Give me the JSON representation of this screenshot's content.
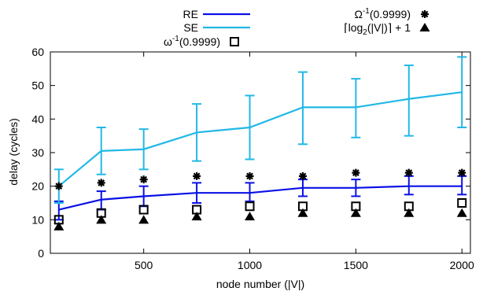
{
  "chart_data": {
    "type": "line",
    "xlabel": "node number (|V|)",
    "ylabel": "delay (cycles)",
    "xlim": [
      60,
      2040
    ],
    "ylim": [
      0,
      60
    ],
    "xticks": [
      500,
      1000,
      1500,
      2000
    ],
    "yticks": [
      0,
      10,
      20,
      30,
      40,
      50,
      60
    ],
    "grid": false,
    "legend_position": "top",
    "x": [
      100,
      300,
      500,
      750,
      1000,
      1250,
      1500,
      1750,
      2000
    ],
    "series": [
      {
        "name": "RE",
        "kind": "line-errorbar",
        "color": "#0a10e6",
        "values": [
          13,
          16,
          17,
          18,
          18,
          19.5,
          19.5,
          20,
          20
        ],
        "err_low": [
          10,
          13,
          14,
          15,
          15.5,
          17,
          17,
          17.5,
          17.5
        ],
        "err_high": [
          15.5,
          18.5,
          20,
          21,
          21,
          22,
          22,
          23,
          23
        ]
      },
      {
        "name": "SE",
        "kind": "line-errorbar",
        "color": "#22b8e6",
        "values": [
          20,
          30.5,
          31,
          36,
          37.5,
          43.5,
          43.5,
          46,
          48
        ],
        "err_low": [
          15,
          23.5,
          25,
          27.5,
          28,
          32.5,
          34.5,
          35,
          37.5
        ],
        "err_high": [
          25,
          37.5,
          37,
          44.5,
          47,
          54,
          52,
          56,
          58.5
        ]
      },
      {
        "name_main": "ω",
        "name_sup": "-1",
        "name_rest": "(0.9999)",
        "kind": "marker",
        "marker": "open-square",
        "values": [
          10,
          12,
          13,
          13,
          14,
          14,
          14,
          14,
          15
        ]
      },
      {
        "name_main": "Ω",
        "name_sup": "-1",
        "name_rest": "(0.9999)",
        "kind": "marker",
        "marker": "asterisk",
        "values": [
          20,
          21,
          22,
          23,
          23,
          23,
          24,
          24,
          24
        ]
      },
      {
        "name_main": "⌈log",
        "name_sub": "2",
        "name_rest": "(|V|)⌉ + 1",
        "kind": "marker",
        "marker": "filled-triangle",
        "values": [
          8,
          10,
          10,
          11,
          11,
          12,
          12,
          12,
          12
        ]
      }
    ]
  }
}
